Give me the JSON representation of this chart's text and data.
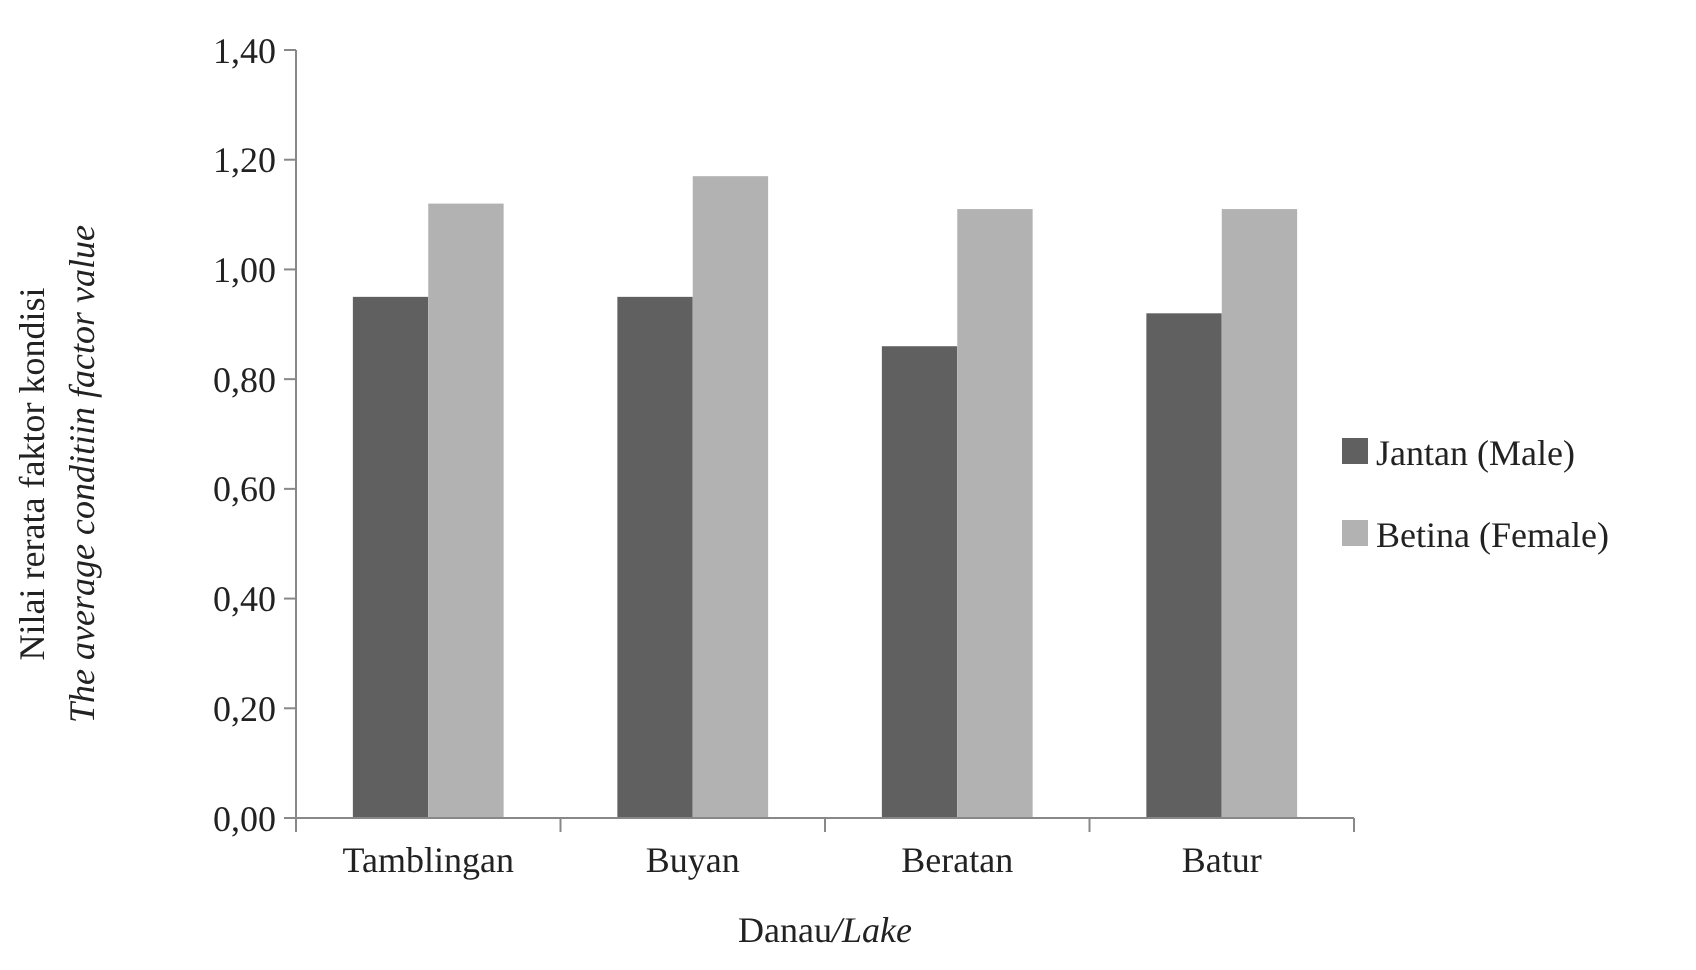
{
  "chart_data": {
    "type": "bar",
    "xlabel": "Danau/Lake",
    "ylabel": "Nilai rerata faktor kondisi\nThe average conditiin factor value",
    "categories": [
      "Tamblingan",
      "Buyan",
      "Beratan",
      "Batur"
    ],
    "series": [
      {
        "name": "Jantan (Male)",
        "color": "#606060",
        "values": [
          0.95,
          0.95,
          0.86,
          0.92
        ]
      },
      {
        "name": "Betina (Female)",
        "color": "#b2b2b2",
        "values": [
          1.12,
          1.17,
          1.11,
          1.11
        ]
      }
    ],
    "ylim": [
      0,
      1.4
    ],
    "yticks": [
      {
        "value": 0,
        "label": "0,00"
      },
      {
        "value": 0.2,
        "label": "0,20"
      },
      {
        "value": 0.4,
        "label": "0,40"
      },
      {
        "value": 0.6,
        "label": "0,60"
      },
      {
        "value": 0.8,
        "label": "0,80"
      },
      {
        "value": 1.0,
        "label": "1,00"
      },
      {
        "value": 1.2,
        "label": "1,20"
      },
      {
        "value": 1.4,
        "label": "1,40"
      }
    ],
    "grid": false,
    "legend": "right"
  }
}
